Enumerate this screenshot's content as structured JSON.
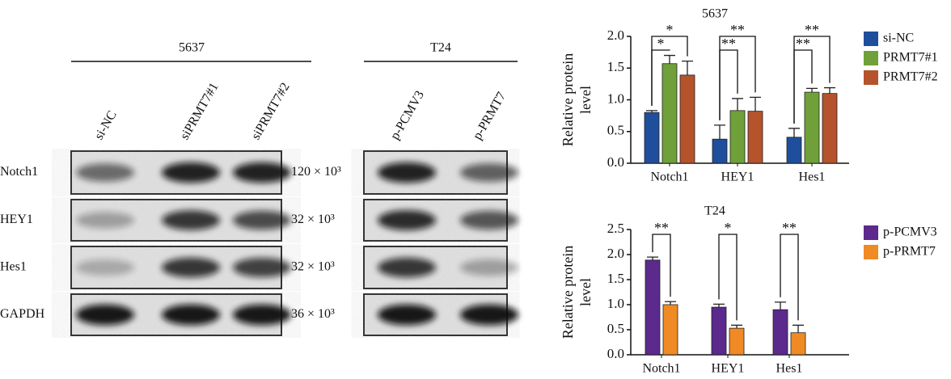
{
  "blots": {
    "groups": [
      {
        "title": "5637",
        "lanes": [
          "si-NC",
          "siPRMT7#1",
          "siPRMT7#2"
        ]
      },
      {
        "title": "T24",
        "lanes": [
          "p-PCMV3",
          "p-PRMT7"
        ]
      }
    ],
    "rows": [
      "Notch1",
      "HEY1",
      "Hes1",
      "GAPDH"
    ],
    "sizes": [
      "120 × 10³",
      "32 × 10³",
      "32 × 10³",
      "36 × 10³"
    ]
  },
  "chart_data": [
    {
      "type": "bar",
      "title": "5637",
      "ylabel": "Relative protein level",
      "categories": [
        "Notch1",
        "HEY1",
        "Hes1"
      ],
      "series": [
        {
          "name": "si-NC",
          "color": "#1f4e9c",
          "values": [
            0.8,
            0.38,
            0.41
          ],
          "errors": [
            0.03,
            0.22,
            0.14
          ]
        },
        {
          "name": "PRMT7#1",
          "color": "#70a03a",
          "values": [
            1.57,
            0.83,
            1.12
          ],
          "errors": [
            0.13,
            0.19,
            0.06
          ]
        },
        {
          "name": "PRMT7#2",
          "color": "#b5532c",
          "values": [
            1.39,
            0.82,
            1.1
          ],
          "errors": [
            0.22,
            0.22,
            0.09
          ]
        }
      ],
      "ylim": [
        0,
        2
      ],
      "yticks": [
        {
          "value": 0,
          "label": "0.0"
        },
        {
          "value": 0.5,
          "label": "0.5"
        },
        {
          "value": 1,
          "label": "1.0"
        },
        {
          "value": 1.5,
          "label": "1.5"
        },
        {
          "value": 2,
          "label": "2.0"
        }
      ],
      "annotations": [
        "*",
        "*",
        "**",
        "**",
        "**",
        "**"
      ],
      "legend": "right"
    },
    {
      "type": "bar",
      "title": "T24",
      "ylabel": "Relative protein level",
      "categories": [
        "Notch1",
        "HEY1",
        "Hes1"
      ],
      "series": [
        {
          "name": "p-PCMV3",
          "color": "#5b2a8c",
          "values": [
            1.89,
            0.95,
            0.9
          ],
          "errors": [
            0.06,
            0.06,
            0.15
          ]
        },
        {
          "name": "p-PRMT7",
          "color": "#f08a24",
          "values": [
            1.0,
            0.53,
            0.44
          ],
          "errors": [
            0.06,
            0.06,
            0.15
          ]
        }
      ],
      "ylim": [
        0,
        2.5
      ],
      "yticks": [
        {
          "value": 0,
          "label": "0.0"
        },
        {
          "value": 0.5,
          "label": "0.5"
        },
        {
          "value": 1,
          "label": "1.0"
        },
        {
          "value": 1.5,
          "label": "1.5"
        },
        {
          "value": 2,
          "label": "2.0"
        },
        {
          "value": 2.5,
          "label": "2.5"
        }
      ],
      "annotations": [
        "**",
        "*",
        "**"
      ],
      "legend": "right"
    }
  ]
}
